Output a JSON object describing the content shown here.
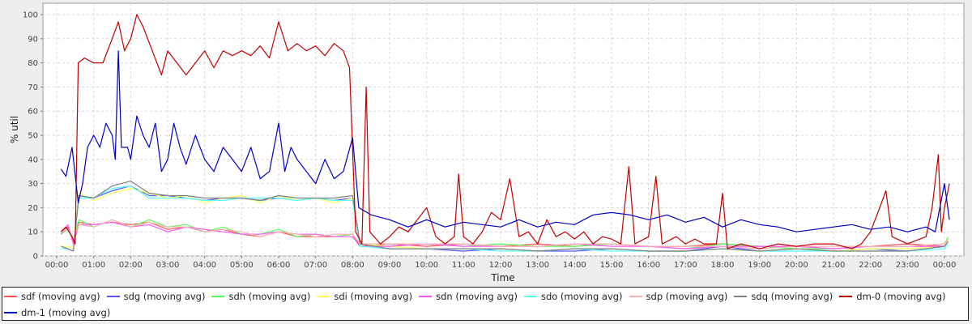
{
  "chart_data": {
    "type": "line",
    "title": "",
    "xlabel": "Time",
    "ylabel": "% util",
    "ylim": [
      0,
      100
    ],
    "yticks": [
      "0",
      "10",
      "20",
      "30",
      "40",
      "50",
      "60",
      "70",
      "80",
      "90",
      "100"
    ],
    "xticks": [
      "00:00",
      "01:00",
      "02:00",
      "03:00",
      "04:00",
      "05:00",
      "06:00",
      "07:00",
      "08:00",
      "09:00",
      "10:00",
      "11:00",
      "12:00",
      "13:00",
      "14:00",
      "15:00",
      "16:00",
      "17:00",
      "18:00",
      "19:00",
      "20:00",
      "21:00",
      "22:00",
      "23:00",
      "00:00"
    ],
    "grid": true,
    "legend_position": "bottom",
    "minor_x_hours": [
      0.12,
      0.3,
      0.45,
      0.6,
      1,
      1.5,
      2,
      2.5,
      3,
      3.5,
      4,
      4.5,
      5,
      5.5,
      6,
      6.5,
      7,
      7.5,
      8,
      8.2,
      9,
      10,
      11,
      12,
      13,
      14,
      15,
      16,
      17,
      18,
      19,
      20,
      21,
      22,
      23,
      24,
      24.1
    ],
    "series": [
      {
        "name": "sdf (moving avg)",
        "color": "#ff5555",
        "values": [
          10,
          12,
          6,
          14,
          13,
          14,
          13,
          14,
          11,
          12,
          10,
          11,
          9,
          8,
          10,
          8,
          8,
          8,
          9,
          4,
          5,
          4,
          5,
          4,
          5,
          4,
          5,
          4,
          4,
          5,
          4,
          4,
          3,
          4,
          5,
          4,
          7
        ]
      },
      {
        "name": "sdg (moving avg)",
        "color": "#5555ff",
        "values": [
          4,
          3,
          2,
          25,
          24,
          27,
          29,
          25,
          25,
          24,
          23,
          24,
          24,
          23,
          24,
          23,
          24,
          23,
          24,
          5,
          3,
          3,
          2,
          3,
          2,
          2,
          3,
          2,
          2,
          4,
          2,
          3,
          2,
          3,
          2,
          4,
          6
        ]
      },
      {
        "name": "sdh (moving avg)",
        "color": "#55ff55",
        "values": [
          9,
          11,
          7,
          15,
          12,
          15,
          12,
          15,
          12,
          13,
          10,
          12,
          9,
          9,
          11,
          8,
          9,
          8,
          9,
          5,
          4,
          5,
          4,
          5,
          4,
          4,
          5,
          4,
          3,
          5,
          4,
          3,
          3,
          4,
          4,
          5,
          8
        ]
      },
      {
        "name": "sdi (moving avg)",
        "color": "#ffff55",
        "values": [
          4,
          4,
          3,
          26,
          23,
          26,
          28,
          26,
          24,
          25,
          22,
          24,
          25,
          22,
          25,
          23,
          24,
          22,
          24,
          5,
          4,
          3,
          3,
          3,
          2,
          3,
          3,
          2,
          2,
          3,
          2,
          3,
          2,
          3,
          3,
          4,
          7
        ]
      },
      {
        "name": "sdn (moving avg)",
        "color": "#ff55ff",
        "values": [
          9,
          13,
          5,
          13,
          13,
          14,
          12,
          13,
          10,
          12,
          11,
          10,
          9,
          9,
          10,
          9,
          9,
          8,
          8,
          4,
          4,
          5,
          4,
          4,
          4,
          5,
          4,
          4,
          3,
          4,
          4,
          4,
          3,
          4,
          4,
          4,
          6
        ]
      },
      {
        "name": "sdo (moving avg)",
        "color": "#55ffff",
        "values": [
          3,
          3,
          2,
          24,
          24,
          28,
          29,
          24,
          24,
          24,
          23,
          23,
          24,
          24,
          24,
          23,
          24,
          23,
          23,
          4,
          3,
          3,
          3,
          2,
          2,
          3,
          2,
          2,
          2,
          3,
          2,
          2,
          2,
          2,
          2,
          3,
          5
        ]
      },
      {
        "name": "sdp (moving avg)",
        "color": "#ffafaf",
        "values": [
          10,
          11,
          7,
          13,
          12,
          15,
          12,
          14,
          12,
          12,
          10,
          11,
          10,
          8,
          10,
          9,
          8,
          9,
          9,
          5,
          5,
          5,
          5,
          4,
          4,
          5,
          5,
          4,
          4,
          4,
          3,
          4,
          4,
          4,
          4,
          5,
          7
        ]
      },
      {
        "name": "sdq (moving avg)",
        "color": "#808080",
        "values": [
          4,
          3,
          2,
          25,
          24,
          29,
          31,
          26,
          25,
          25,
          24,
          24,
          24,
          23,
          25,
          24,
          24,
          24,
          25,
          5,
          3,
          3,
          3,
          3,
          2,
          3,
          3,
          2,
          2,
          3,
          2,
          3,
          2,
          2,
          2,
          4,
          6
        ]
      },
      {
        "name": "dm-0 (moving avg)",
        "color": "#c00000",
        "points": [
          [
            "00:07",
            10
          ],
          [
            "00:15",
            12
          ],
          [
            "00:25",
            8
          ],
          [
            "00:30",
            5
          ],
          [
            "00:35",
            80
          ],
          [
            "00:45",
            82
          ],
          [
            "01:00",
            80
          ],
          [
            "01:15",
            80
          ],
          [
            "01:30",
            90
          ],
          [
            "01:40",
            97
          ],
          [
            "01:50",
            85
          ],
          [
            "02:00",
            90
          ],
          [
            "02:10",
            100
          ],
          [
            "02:20",
            95
          ],
          [
            "02:35",
            85
          ],
          [
            "02:50",
            75
          ],
          [
            "03:00",
            85
          ],
          [
            "03:15",
            80
          ],
          [
            "03:30",
            75
          ],
          [
            "03:45",
            80
          ],
          [
            "04:00",
            85
          ],
          [
            "04:15",
            78
          ],
          [
            "04:30",
            85
          ],
          [
            "04:45",
            83
          ],
          [
            "05:00",
            85
          ],
          [
            "05:15",
            83
          ],
          [
            "05:30",
            87
          ],
          [
            "05:45",
            82
          ],
          [
            "06:00",
            97
          ],
          [
            "06:15",
            85
          ],
          [
            "06:30",
            88
          ],
          [
            "06:45",
            85
          ],
          [
            "07:00",
            87
          ],
          [
            "07:15",
            83
          ],
          [
            "07:30",
            88
          ],
          [
            "07:45",
            85
          ],
          [
            "07:55",
            78
          ],
          [
            "08:05",
            10
          ],
          [
            "08:15",
            5
          ],
          [
            "08:22",
            70
          ],
          [
            "08:28",
            10
          ],
          [
            "08:45",
            5
          ],
          [
            "09:00",
            8
          ],
          [
            "09:15",
            12
          ],
          [
            "09:30",
            10
          ],
          [
            "09:45",
            15
          ],
          [
            "10:00",
            20
          ],
          [
            "10:15",
            8
          ],
          [
            "10:30",
            5
          ],
          [
            "10:45",
            8
          ],
          [
            "10:52",
            34
          ],
          [
            "11:00",
            8
          ],
          [
            "11:15",
            5
          ],
          [
            "11:30",
            10
          ],
          [
            "11:45",
            18
          ],
          [
            "12:00",
            15
          ],
          [
            "12:15",
            32
          ],
          [
            "12:30",
            8
          ],
          [
            "12:45",
            10
          ],
          [
            "13:00",
            5
          ],
          [
            "13:15",
            15
          ],
          [
            "13:30",
            8
          ],
          [
            "13:45",
            10
          ],
          [
            "14:00",
            7
          ],
          [
            "14:15",
            10
          ],
          [
            "14:30",
            5
          ],
          [
            "14:45",
            8
          ],
          [
            "15:00",
            7
          ],
          [
            "15:15",
            5
          ],
          [
            "15:28",
            37
          ],
          [
            "15:38",
            5
          ],
          [
            "16:00",
            8
          ],
          [
            "16:12",
            33
          ],
          [
            "16:22",
            5
          ],
          [
            "16:45",
            8
          ],
          [
            "17:00",
            5
          ],
          [
            "17:15",
            7
          ],
          [
            "17:30",
            5
          ],
          [
            "17:50",
            5
          ],
          [
            "18:00",
            26
          ],
          [
            "18:08",
            3
          ],
          [
            "18:30",
            5
          ],
          [
            "18:45",
            4
          ],
          [
            "19:00",
            3
          ],
          [
            "19:30",
            5
          ],
          [
            "20:00",
            4
          ],
          [
            "20:30",
            5
          ],
          [
            "21:00",
            5
          ],
          [
            "21:30",
            3
          ],
          [
            "21:45",
            5
          ],
          [
            "22:00",
            10
          ],
          [
            "22:15",
            20
          ],
          [
            "22:25",
            27
          ],
          [
            "22:35",
            8
          ],
          [
            "23:00",
            5
          ],
          [
            "23:30",
            8
          ],
          [
            "23:40",
            20
          ],
          [
            "23:50",
            42
          ],
          [
            "23:55",
            10
          ],
          [
            "24:00",
            20
          ],
          [
            "24:08",
            30
          ]
        ]
      },
      {
        "name": "dm-1 (moving avg)",
        "color": "#0000c0",
        "points": [
          [
            "00:07",
            36
          ],
          [
            "00:15",
            33
          ],
          [
            "00:25",
            45
          ],
          [
            "00:35",
            22
          ],
          [
            "00:42",
            30
          ],
          [
            "00:50",
            45
          ],
          [
            "01:00",
            50
          ],
          [
            "01:10",
            45
          ],
          [
            "01:20",
            55
          ],
          [
            "01:30",
            50
          ],
          [
            "01:35",
            40
          ],
          [
            "01:40",
            85
          ],
          [
            "01:45",
            45
          ],
          [
            "01:55",
            45
          ],
          [
            "02:00",
            40
          ],
          [
            "02:10",
            58
          ],
          [
            "02:20",
            50
          ],
          [
            "02:30",
            45
          ],
          [
            "02:40",
            55
          ],
          [
            "02:50",
            35
          ],
          [
            "03:00",
            40
          ],
          [
            "03:10",
            55
          ],
          [
            "03:20",
            45
          ],
          [
            "03:30",
            38
          ],
          [
            "03:45",
            50
          ],
          [
            "04:00",
            40
          ],
          [
            "04:15",
            35
          ],
          [
            "04:30",
            45
          ],
          [
            "04:45",
            40
          ],
          [
            "05:00",
            35
          ],
          [
            "05:15",
            45
          ],
          [
            "05:30",
            32
          ],
          [
            "05:45",
            35
          ],
          [
            "06:00",
            55
          ],
          [
            "06:10",
            35
          ],
          [
            "06:20",
            45
          ],
          [
            "06:30",
            40
          ],
          [
            "06:45",
            35
          ],
          [
            "07:00",
            30
          ],
          [
            "07:15",
            40
          ],
          [
            "07:30",
            32
          ],
          [
            "07:45",
            35
          ],
          [
            "08:00",
            49
          ],
          [
            "08:10",
            20
          ],
          [
            "08:30",
            17
          ],
          [
            "09:00",
            15
          ],
          [
            "09:30",
            12
          ],
          [
            "10:00",
            15
          ],
          [
            "10:30",
            12
          ],
          [
            "11:00",
            14
          ],
          [
            "11:30",
            13
          ],
          [
            "12:00",
            12
          ],
          [
            "12:30",
            15
          ],
          [
            "13:00",
            12
          ],
          [
            "13:30",
            14
          ],
          [
            "14:00",
            13
          ],
          [
            "14:30",
            17
          ],
          [
            "15:00",
            18
          ],
          [
            "15:30",
            17
          ],
          [
            "16:00",
            15
          ],
          [
            "16:30",
            17
          ],
          [
            "17:00",
            14
          ],
          [
            "17:30",
            16
          ],
          [
            "18:00",
            12
          ],
          [
            "18:30",
            15
          ],
          [
            "19:00",
            13
          ],
          [
            "19:30",
            12
          ],
          [
            "20:00",
            10
          ],
          [
            "20:30",
            11
          ],
          [
            "21:00",
            12
          ],
          [
            "21:30",
            13
          ],
          [
            "22:00",
            11
          ],
          [
            "22:30",
            12
          ],
          [
            "23:00",
            10
          ],
          [
            "23:30",
            12
          ],
          [
            "23:45",
            10
          ],
          [
            "24:00",
            30
          ],
          [
            "24:08",
            15
          ]
        ]
      }
    ]
  }
}
